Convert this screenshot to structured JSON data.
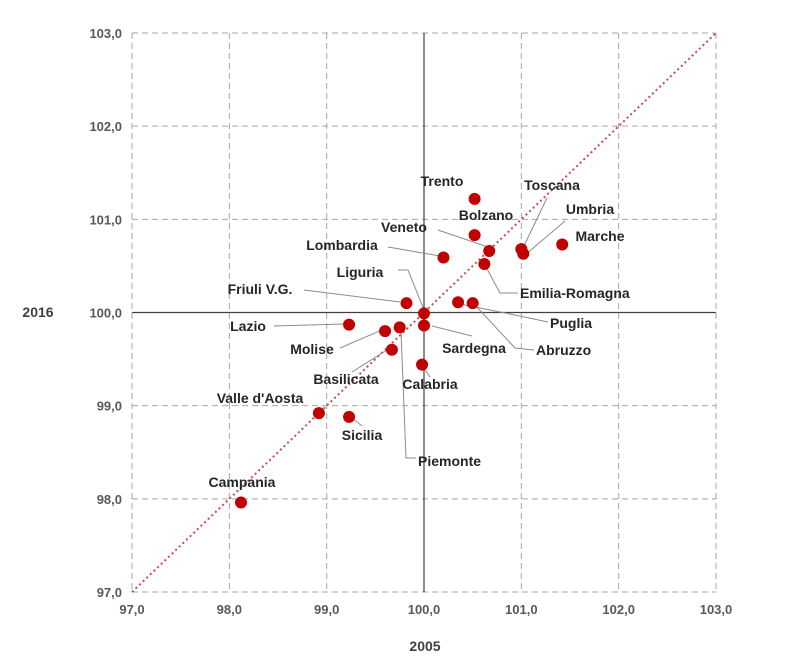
{
  "chart_data": {
    "type": "scatter",
    "xlabel": "2005",
    "ylabel": "2016",
    "xlim": [
      97.0,
      103.0
    ],
    "ylim": [
      97.0,
      103.0
    ],
    "xticks": [
      "97,0",
      "98,0",
      "99,0",
      "100,0",
      "101,0",
      "102,0",
      "103,0"
    ],
    "yticks": [
      "97,0",
      "98,0",
      "99,0",
      "100,0",
      "101,0",
      "102,0",
      "103,0"
    ],
    "grid": true,
    "reference_lines": {
      "x": 100.0,
      "y": 100.0,
      "diagonal": "y = x"
    },
    "point_color": "#c00000",
    "diagonal_color": "#c0504d",
    "points": [
      {
        "label": "Trento",
        "x": 100.52,
        "y": 101.22
      },
      {
        "label": "Bolzano",
        "x": 100.52,
        "y": 100.83
      },
      {
        "label": "Toscana",
        "x": 101.0,
        "y": 100.68
      },
      {
        "label": "Umbria",
        "x": 101.02,
        "y": 100.63
      },
      {
        "label": "Marche",
        "x": 101.42,
        "y": 100.73
      },
      {
        "label": "Veneto",
        "x": 100.67,
        "y": 100.66
      },
      {
        "label": "Lombardia",
        "x": 100.2,
        "y": 100.59
      },
      {
        "label": "Emilia-Romagna",
        "x": 100.62,
        "y": 100.52
      },
      {
        "label": "Liguria",
        "x": 100.0,
        "y": 99.99
      },
      {
        "label": "Friuli V.G.",
        "x": 99.82,
        "y": 100.1
      },
      {
        "label": "Puglia",
        "x": 100.35,
        "y": 100.11
      },
      {
        "label": "Abruzzo",
        "x": 100.5,
        "y": 100.1
      },
      {
        "label": "Lazio",
        "x": 99.23,
        "y": 99.87
      },
      {
        "label": "Molise",
        "x": 99.6,
        "y": 99.8
      },
      {
        "label": "Basilicata",
        "x": 99.67,
        "y": 99.6
      },
      {
        "label": "Sardegna",
        "x": 100.0,
        "y": 99.86
      },
      {
        "label": "Piemonte",
        "x": 99.75,
        "y": 99.84
      },
      {
        "label": "Calabria",
        "x": 99.98,
        "y": 99.44
      },
      {
        "label": "Valle d'Aosta",
        "x": 98.92,
        "y": 98.92
      },
      {
        "label": "Sicilia",
        "x": 99.23,
        "y": 98.88
      },
      {
        "label": "Campania",
        "x": 98.12,
        "y": 97.96
      }
    ]
  }
}
